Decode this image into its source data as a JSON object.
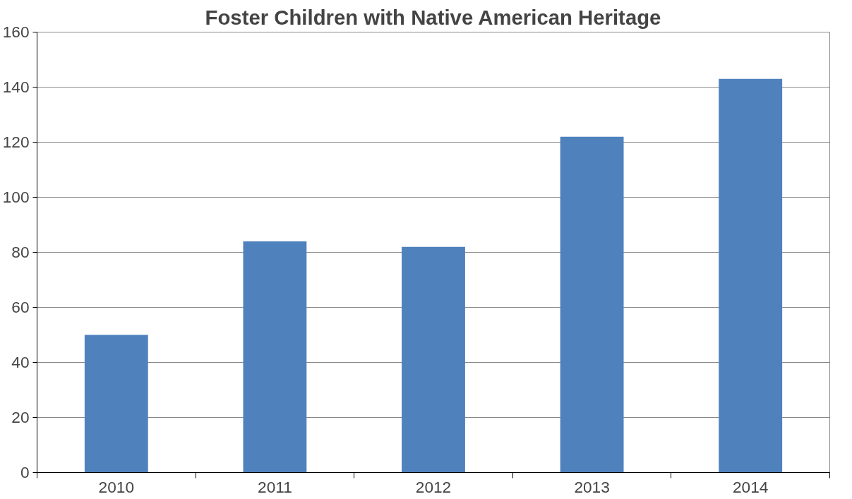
{
  "chart_data": {
    "type": "bar",
    "title": "Foster Children with Native American Heritage",
    "categories": [
      "2010",
      "2011",
      "2012",
      "2013",
      "2014"
    ],
    "values": [
      50,
      84,
      82,
      122,
      143
    ],
    "color": "#4f81bd",
    "ylim": [
      0,
      160
    ],
    "yticks": [
      0,
      20,
      40,
      60,
      80,
      100,
      120,
      140,
      160
    ],
    "grid": "y"
  }
}
